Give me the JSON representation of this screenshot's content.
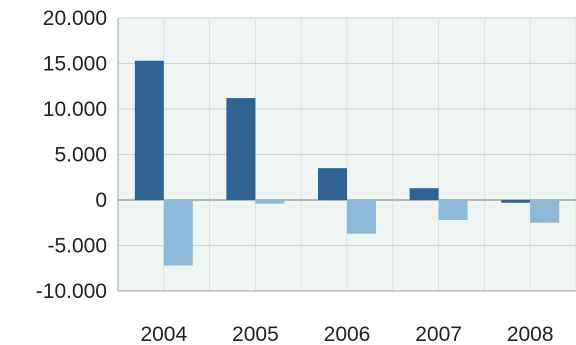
{
  "chart_data": {
    "type": "bar",
    "categories": [
      "2004",
      "2005",
      "2006",
      "2007",
      "2008"
    ],
    "series": [
      {
        "values": [
          15300,
          11200,
          3500,
          1300,
          -300
        ],
        "color": "#2e6394"
      },
      {
        "values": [
          -7200,
          -400,
          -3700,
          -2200,
          -2500
        ],
        "color": "#8cb9d8"
      }
    ],
    "y_ticks": [
      "20.000",
      "15.000",
      "10.000",
      "5.000",
      "0",
      "-5.000",
      "-10.000"
    ],
    "ylim": [
      -10000,
      20000
    ],
    "grid": true,
    "legend": "none",
    "colors": {
      "plot_background": "#eef5f3",
      "gridline": "#c9d6d2",
      "axis": "#9aa9a5"
    }
  }
}
